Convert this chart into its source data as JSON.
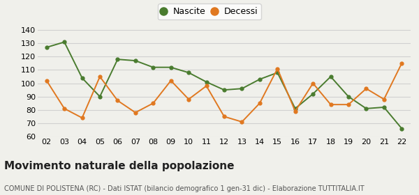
{
  "years": [
    "02",
    "03",
    "04",
    "05",
    "06",
    "07",
    "08",
    "09",
    "10",
    "11",
    "12",
    "13",
    "14",
    "15",
    "16",
    "17",
    "18",
    "19",
    "20",
    "21",
    "22"
  ],
  "nascite": [
    127,
    131,
    104,
    90,
    118,
    117,
    112,
    112,
    108,
    101,
    95,
    96,
    103,
    108,
    81,
    92,
    105,
    90,
    81,
    82,
    66
  ],
  "decessi": [
    102,
    81,
    74,
    105,
    87,
    78,
    85,
    102,
    88,
    98,
    75,
    71,
    85,
    111,
    79,
    100,
    84,
    84,
    96,
    88,
    115
  ],
  "nascite_color": "#4a7c2f",
  "decessi_color": "#e07820",
  "bg_color": "#f0f0eb",
  "grid_color": "#d0d0d0",
  "ylim": [
    60,
    145
  ],
  "yticks": [
    60,
    70,
    80,
    90,
    100,
    110,
    120,
    130,
    140
  ],
  "title": "Movimento naturale della popolazione",
  "subtitle": "COMUNE DI POLISTENA (RC) - Dati ISTAT (bilancio demografico 1 gen-31 dic) - Elaborazione TUTTITALIA.IT",
  "legend_nascite": "Nascite",
  "legend_decessi": "Decessi",
  "title_fontsize": 11,
  "subtitle_fontsize": 7,
  "tick_fontsize": 8,
  "legend_fontsize": 9
}
